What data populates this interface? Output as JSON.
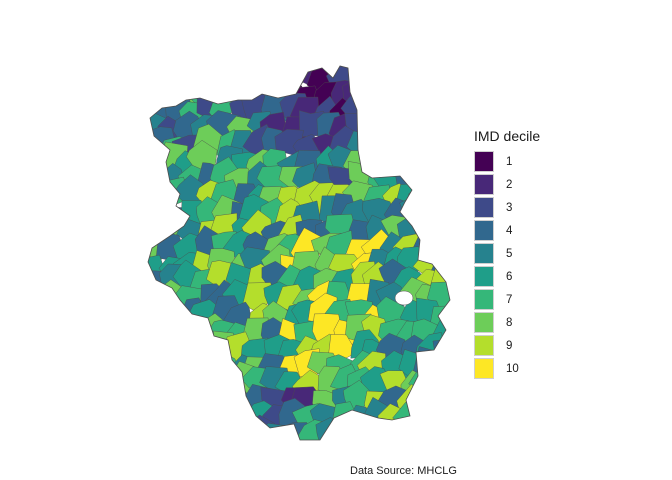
{
  "legend": {
    "title": "IMD decile",
    "items": [
      {
        "label": "1",
        "color": "#440154"
      },
      {
        "label": "2",
        "color": "#482878"
      },
      {
        "label": "3",
        "color": "#3E4A89"
      },
      {
        "label": "4",
        "color": "#31688E"
      },
      {
        "label": "5",
        "color": "#26828E"
      },
      {
        "label": "6",
        "color": "#1F9E89"
      },
      {
        "label": "7",
        "color": "#35B779"
      },
      {
        "label": "8",
        "color": "#6DCD59"
      },
      {
        "label": "9",
        "color": "#B4DE2C"
      },
      {
        "label": "10",
        "color": "#FDE725"
      }
    ]
  },
  "caption": "Data Source: MHCLG",
  "map": {
    "outline_color": "#4d4d4d"
  }
}
